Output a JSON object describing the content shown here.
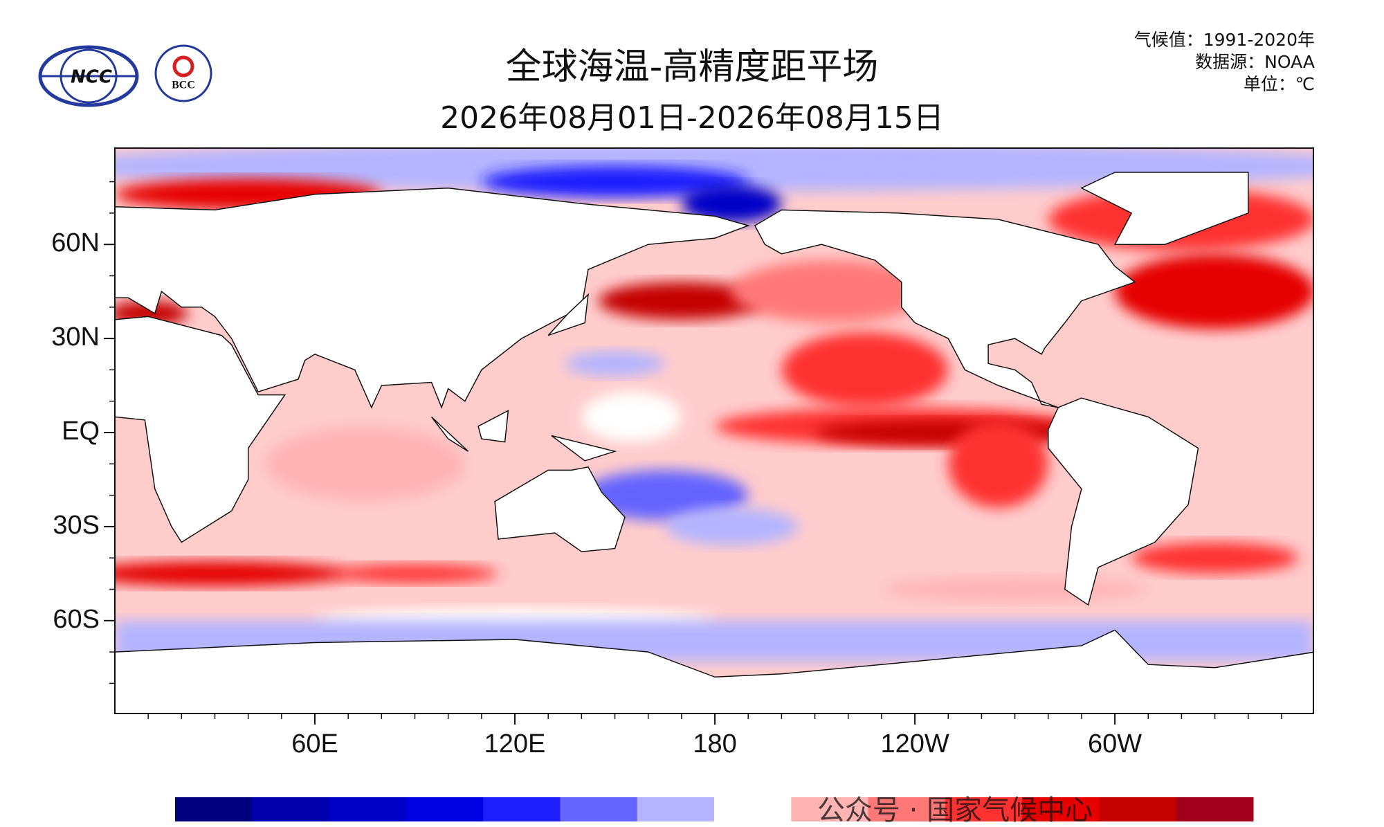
{
  "header": {
    "title": "全球海温-高精度距平场",
    "subtitle": "2026年08月01日-2026年08月15日",
    "info": [
      "气候值：1991-2020年",
      "数据源：NOAA",
      "单位：℃"
    ]
  },
  "logos": [
    "NCC",
    "BCC"
  ],
  "map": {
    "lat_labels": [
      "60N",
      "30N",
      "EQ",
      "30S",
      "60S"
    ],
    "lon_labels": [
      "60E",
      "120E",
      "180",
      "120W",
      "60W"
    ]
  },
  "colorbar": {
    "colors": [
      "#00007f",
      "#0000ad",
      "#0000c8",
      "#0000e2",
      "#1e1eff",
      "#6464ff",
      "#b4b4ff",
      "#ffffff",
      "#ffb4b4",
      "#ff7878",
      "#ff3232",
      "#e60000",
      "#c40000",
      "#a0001a"
    ]
  },
  "watermark": "公众号 · 国家气候中心"
}
